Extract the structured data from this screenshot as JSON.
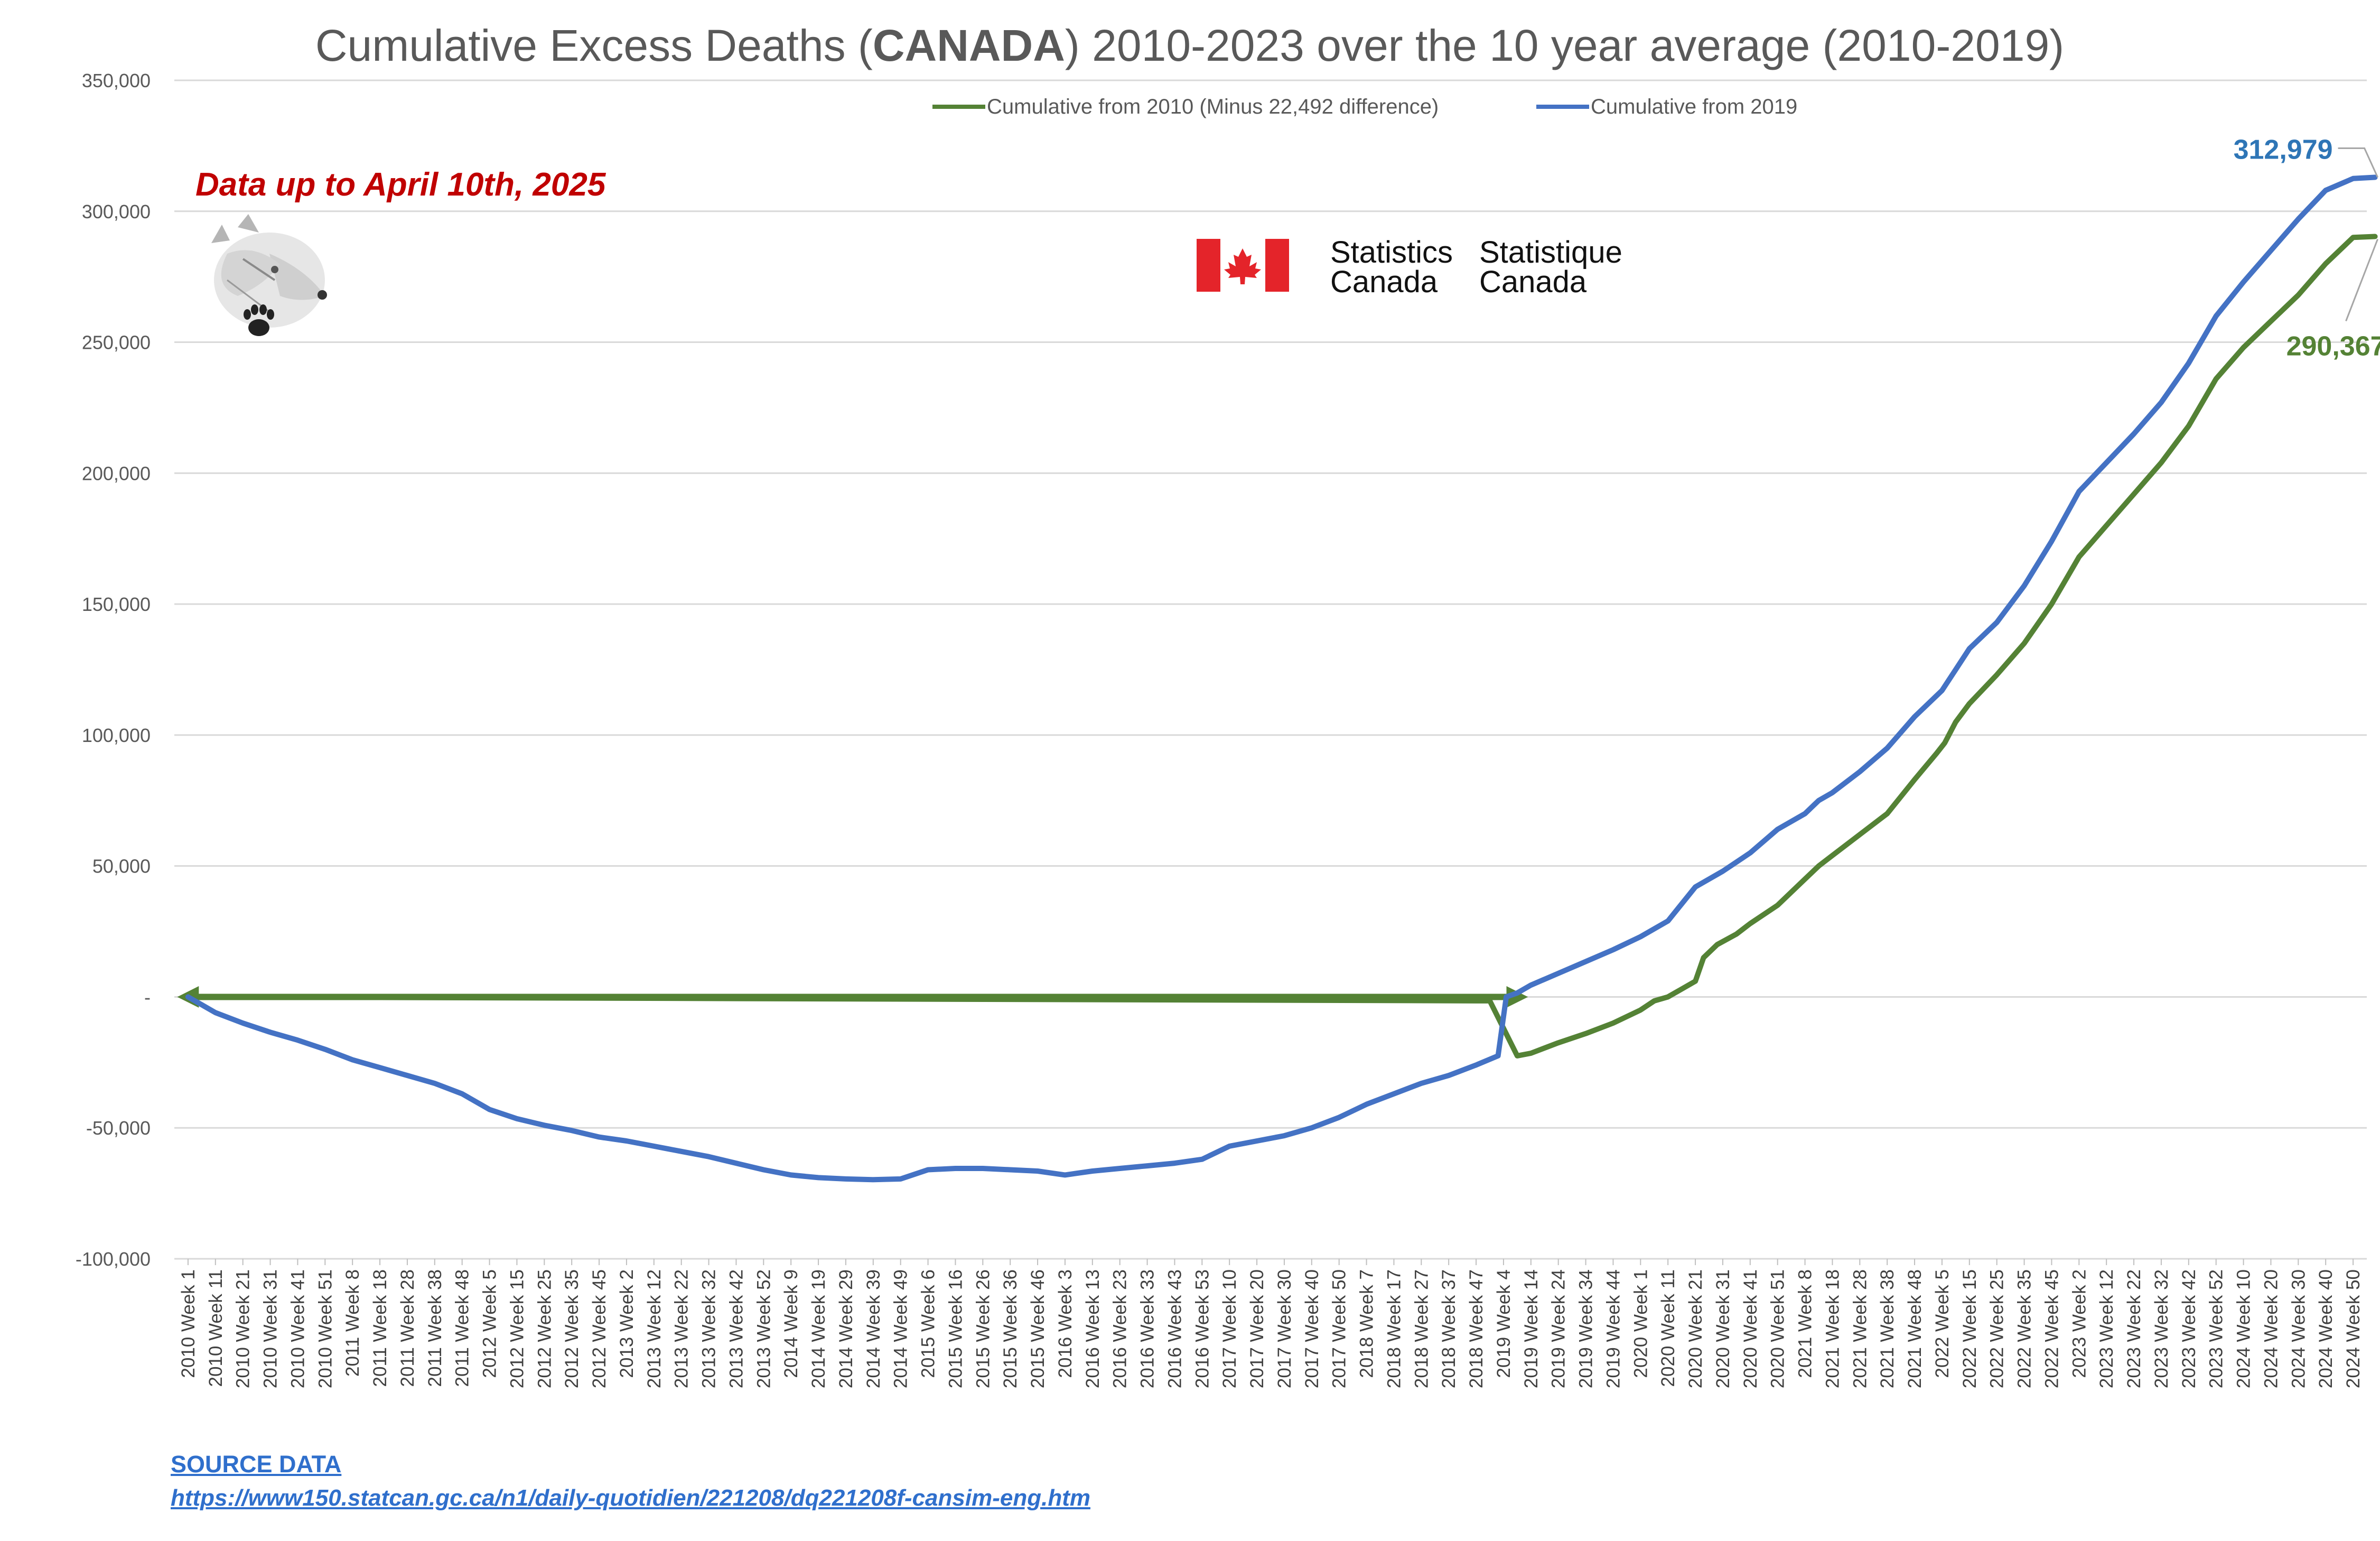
{
  "chart_data": {
    "type": "line",
    "title_pre": "Cumulative Excess Deaths (",
    "title_bold": "CANADA",
    "title_post": ") 2010-2023 over the 10 year average (2010-2019)",
    "annotation_date": "Data up to April 10th, 2025",
    "grid": true,
    "legend_position": "top",
    "ylim": [
      -100000,
      350000
    ],
    "y_ticks": [
      {
        "value": 350000,
        "label": "350,000"
      },
      {
        "value": 300000,
        "label": "300,000"
      },
      {
        "value": 250000,
        "label": "250,000"
      },
      {
        "value": 200000,
        "label": "200,000"
      },
      {
        "value": 150000,
        "label": "150,000"
      },
      {
        "value": 100000,
        "label": "100,000"
      },
      {
        "value": 50000,
        "label": "50,000"
      },
      {
        "value": 0,
        "label": "-"
      },
      {
        "value": -50000,
        "label": "-50,000"
      },
      {
        "value": -100000,
        "label": "-100,000"
      }
    ],
    "x_tick_labels": [
      "2010 Week 1",
      "2010 Week 11",
      "2010 Week 21",
      "2010 Week 31",
      "2010 Week 41",
      "2010 Week 51",
      "2011 Week 8",
      "2011 Week 18",
      "2011 Week 28",
      "2011 Week 38",
      "2011 Week 48",
      "2012 Week 5",
      "2012 Week 15",
      "2012 Week 25",
      "2012 Week 35",
      "2012 Week 45",
      "2013 Week 2",
      "2013 Week 12",
      "2013 Week 22",
      "2013 Week 32",
      "2013 Week 42",
      "2013 Week 52",
      "2014 Week 9",
      "2014 Week 19",
      "2014 Week 29",
      "2014 Week 39",
      "2014 Week 49",
      "2015 Week 6",
      "2015 Week 16",
      "2015 Week 26",
      "2015 Week 36",
      "2015 Week 46",
      "2016 Week 3",
      "2016 Week 13",
      "2016 Week 23",
      "2016 Week 33",
      "2016 Week 43",
      "2016 Week 53",
      "2017 Week 10",
      "2017 Week 20",
      "2017 Week 30",
      "2017 Week 40",
      "2017 Week 50",
      "2018 Week 7",
      "2018 Week 17",
      "2018 Week 27",
      "2018 Week 37",
      "2018 Week 47",
      "2019 Week 4",
      "2019 Week 14",
      "2019 Week 24",
      "2019 Week 34",
      "2019 Week 44",
      "2020 Week 1",
      "2020 Week 11",
      "2020 Week 21",
      "2020 Week 31",
      "2020 Week 41",
      "2020 Week 51",
      "2021 Week 8",
      "2021 Week 18",
      "2021 Week 28",
      "2021 Week 38",
      "2021 Week 48",
      "2022 Week 5",
      "2022 Week 15",
      "2022 Week 25",
      "2022 Week 35",
      "2022 Week 45",
      "2023 Week 2",
      "2023 Week 12",
      "2023 Week 22",
      "2023 Week 32",
      "2023 Week 42",
      "2023 Week 52",
      "2024 Week 10",
      "2024 Week 20",
      "2024 Week 30",
      "2024 Week 40",
      "2024 Week 50"
    ],
    "series": [
      {
        "name": "Cumulative from 2010 (Minus 22,492 difference)",
        "color": "#548235",
        "points": [
          [
            0,
            0
          ],
          [
            47.5,
            -1500
          ],
          [
            48.5,
            -22492
          ],
          [
            49,
            -21500
          ],
          [
            50,
            -17500
          ],
          [
            51,
            -14000
          ],
          [
            52,
            -10000
          ],
          [
            53,
            -5000
          ],
          [
            53.5,
            -1500
          ],
          [
            54,
            0
          ],
          [
            55,
            6000
          ],
          [
            55.3,
            15000
          ],
          [
            55.8,
            20000
          ],
          [
            56.5,
            24000
          ],
          [
            57,
            28000
          ],
          [
            58,
            35000
          ],
          [
            59,
            45000
          ],
          [
            59.5,
            50000
          ],
          [
            60,
            54000
          ],
          [
            61,
            62000
          ],
          [
            62,
            70000
          ],
          [
            63,
            83000
          ],
          [
            63.8,
            93000
          ],
          [
            64.1,
            97000
          ],
          [
            64.5,
            105000
          ],
          [
            65,
            112000
          ],
          [
            66,
            123000
          ],
          [
            67,
            135000
          ],
          [
            68,
            150000
          ],
          [
            69,
            168000
          ],
          [
            70,
            180000
          ],
          [
            71,
            192000
          ],
          [
            72,
            204000
          ],
          [
            73,
            218000
          ],
          [
            74,
            236000
          ],
          [
            75,
            248000
          ],
          [
            76,
            258000
          ],
          [
            77,
            268000
          ],
          [
            78,
            280000
          ],
          [
            79,
            290000
          ],
          [
            79.8,
            290367
          ]
        ],
        "end_label": "290,367"
      },
      {
        "name": "Cumulative from 2019",
        "color": "#4472c4",
        "points": [
          [
            0,
            0
          ],
          [
            1,
            -6000
          ],
          [
            2,
            -10000
          ],
          [
            3,
            -13500
          ],
          [
            4,
            -16500
          ],
          [
            5,
            -20000
          ],
          [
            6,
            -24000
          ],
          [
            7,
            -27000
          ],
          [
            8,
            -30000
          ],
          [
            9,
            -33000
          ],
          [
            10,
            -37000
          ],
          [
            11,
            -43000
          ],
          [
            12,
            -46500
          ],
          [
            13,
            -49000
          ],
          [
            14,
            -51000
          ],
          [
            15,
            -53500
          ],
          [
            16,
            -55000
          ],
          [
            17,
            -57000
          ],
          [
            18,
            -59000
          ],
          [
            19,
            -61000
          ],
          [
            20,
            -63500
          ],
          [
            21,
            -66000
          ],
          [
            22,
            -68000
          ],
          [
            23,
            -69000
          ],
          [
            24,
            -69500
          ],
          [
            25,
            -69800
          ],
          [
            26,
            -69500
          ],
          [
            27,
            -66000
          ],
          [
            28,
            -65500
          ],
          [
            29,
            -65500
          ],
          [
            30,
            -66000
          ],
          [
            31,
            -66500
          ],
          [
            32,
            -68000
          ],
          [
            33,
            -66500
          ],
          [
            34,
            -65500
          ],
          [
            35,
            -64500
          ],
          [
            36,
            -63500
          ],
          [
            37,
            -62000
          ],
          [
            38,
            -57000
          ],
          [
            39,
            -55000
          ],
          [
            40,
            -53000
          ],
          [
            41,
            -50000
          ],
          [
            42,
            -46000
          ],
          [
            43,
            -41000
          ],
          [
            44,
            -37000
          ],
          [
            45,
            -33000
          ],
          [
            46,
            -30000
          ],
          [
            47,
            -26000
          ],
          [
            47.8,
            -22500
          ],
          [
            48.1,
            0
          ],
          [
            48.5,
            1500
          ],
          [
            49,
            4500
          ],
          [
            50,
            9000
          ],
          [
            51,
            13500
          ],
          [
            52,
            18000
          ],
          [
            53,
            23000
          ],
          [
            54,
            29000
          ],
          [
            55,
            42000
          ],
          [
            56,
            48000
          ],
          [
            57,
            55000
          ],
          [
            58,
            64000
          ],
          [
            59,
            70000
          ],
          [
            59.5,
            75000
          ],
          [
            60,
            78000
          ],
          [
            61,
            86000
          ],
          [
            62,
            95000
          ],
          [
            63,
            107000
          ],
          [
            64,
            117000
          ],
          [
            64.5,
            125000
          ],
          [
            65,
            133000
          ],
          [
            66,
            143000
          ],
          [
            67,
            157000
          ],
          [
            68,
            174000
          ],
          [
            69,
            193000
          ],
          [
            70,
            204000
          ],
          [
            71,
            215000
          ],
          [
            72,
            227000
          ],
          [
            73,
            242000
          ],
          [
            74,
            260000
          ],
          [
            75,
            273000
          ],
          [
            76,
            285000
          ],
          [
            77,
            297000
          ],
          [
            78,
            308000
          ],
          [
            79,
            312500
          ],
          [
            79.8,
            312979
          ]
        ],
        "end_label": "312,979"
      }
    ]
  },
  "logos": {
    "agency_en_1": "Statistics",
    "agency_en_2": "Canada",
    "agency_fr_1": "Statistique",
    "agency_fr_2": "Canada",
    "flag_red": "#e4242a"
  },
  "source": {
    "label": "SOURCE DATA",
    "url": "https://www150.statcan.gc.ca/n1/daily-quotidien/221208/dq221208f-cansim-eng.htm"
  }
}
